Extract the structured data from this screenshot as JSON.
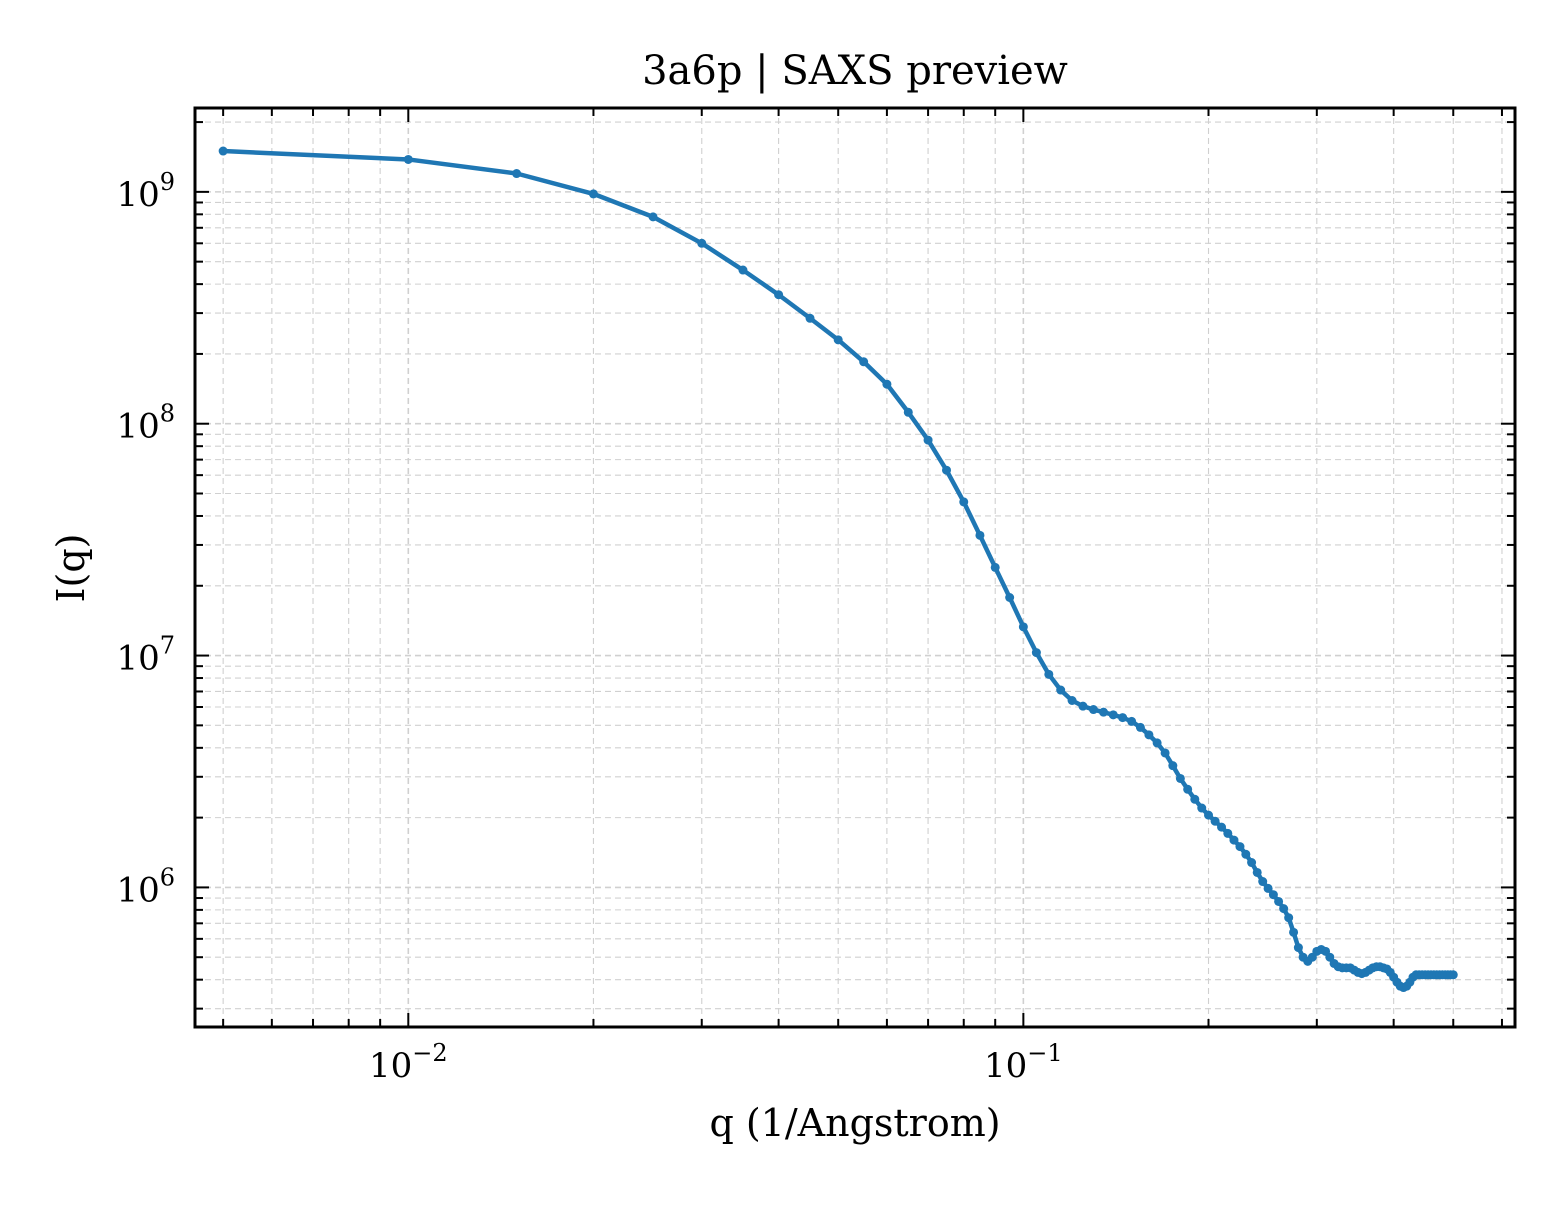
{
  "chart_data": {
    "type": "line",
    "title": "3a6p | SAXS preview",
    "xlabel": "q (1/Angstrom)",
    "ylabel": "I(q)",
    "xscale": "log",
    "yscale": "log",
    "xlim": [
      0.0045,
      0.63
    ],
    "ylim": [
      250000,
      2300000000
    ],
    "grid": true,
    "line_color": "#1f77b4",
    "x_ticks": [
      {
        "value": 0.01,
        "base": "10",
        "exp": "−2"
      },
      {
        "value": 0.1,
        "base": "10",
        "exp": "−1"
      }
    ],
    "y_ticks": [
      {
        "value": 1000000,
        "base": "10",
        "exp": "6"
      },
      {
        "value": 10000000,
        "base": "10",
        "exp": "7"
      },
      {
        "value": 100000000,
        "base": "10",
        "exp": "8"
      },
      {
        "value": 1000000000,
        "base": "10",
        "exp": "9"
      }
    ],
    "series": [
      {
        "x": [
          0.005,
          0.01,
          0.015,
          0.02,
          0.025,
          0.03,
          0.035,
          0.04,
          0.045,
          0.05,
          0.055,
          0.06,
          0.065,
          0.07,
          0.075,
          0.08,
          0.085,
          0.09,
          0.095,
          0.1,
          0.105,
          0.11,
          0.115,
          0.12,
          0.125,
          0.13,
          0.135,
          0.14,
          0.145,
          0.15,
          0.155,
          0.16,
          0.165,
          0.17,
          0.175,
          0.18,
          0.185,
          0.19,
          0.195,
          0.2,
          0.205,
          0.21,
          0.215,
          0.22,
          0.225,
          0.23,
          0.235,
          0.24,
          0.245,
          0.25,
          0.255,
          0.26,
          0.265,
          0.27,
          0.275,
          0.28,
          0.285,
          0.29,
          0.295,
          0.3,
          0.305,
          0.31,
          0.315,
          0.32,
          0.325,
          0.33,
          0.335,
          0.34,
          0.345,
          0.35,
          0.355,
          0.36,
          0.365,
          0.37,
          0.375,
          0.38,
          0.385,
          0.39,
          0.395,
          0.4,
          0.405,
          0.41,
          0.415,
          0.42,
          0.425,
          0.43,
          0.435,
          0.44,
          0.445,
          0.45,
          0.455,
          0.46,
          0.465,
          0.47,
          0.475,
          0.48,
          0.485,
          0.49,
          0.495,
          0.5
        ],
        "y": [
          1500000000,
          1380000000,
          1200000000,
          980000000,
          780000000,
          600000000,
          460000000,
          360000000,
          285000000,
          230000000,
          185000000,
          148000000,
          112000000,
          85000000,
          63000000,
          46000000,
          33000000,
          24000000,
          17800000,
          13300000,
          10300000,
          8300000,
          7100000,
          6400000,
          6050000,
          5850000,
          5700000,
          5550000,
          5400000,
          5200000,
          4900000,
          4550000,
          4200000,
          3800000,
          3350000,
          2950000,
          2650000,
          2400000,
          2200000,
          2050000,
          1930000,
          1820000,
          1710000,
          1600000,
          1500000,
          1390000,
          1280000,
          1160000,
          1060000,
          990000,
          930000,
          870000,
          810000,
          740000,
          640000,
          550000,
          500000,
          480000,
          500000,
          530000,
          540000,
          530000,
          500000,
          470000,
          455000,
          450000,
          450000,
          450000,
          440000,
          430000,
          425000,
          430000,
          440000,
          450000,
          455000,
          455000,
          450000,
          445000,
          430000,
          410000,
          390000,
          375000,
          370000,
          375000,
          390000,
          410000,
          420000,
          420000,
          420000,
          420000,
          420000,
          420000,
          420000,
          420000,
          420000,
          420000,
          420000,
          420000,
          420000,
          420000
        ]
      }
    ]
  }
}
